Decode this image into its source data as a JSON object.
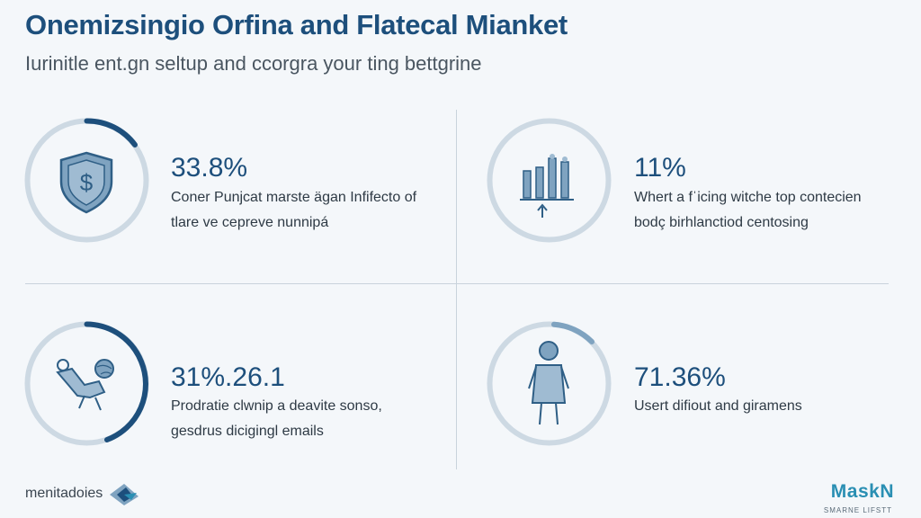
{
  "header": {
    "title": "Onemizsingio Orfina and Flatecal Mianket",
    "subtitle": "Iurinitle ent.gn seltup and ccorgra your ting bettgrine"
  },
  "stats": [
    {
      "value": "33.8%",
      "desc_line1": "Coner Punjcat marste ägan Infifecto of",
      "desc_line2": "tlare ve cepreve nunnipá",
      "icon": "shield-dollar-icon",
      "progress": 0.12
    },
    {
      "value": "11%",
      "desc_line1": "Whert a fˈicing witche top contecien",
      "desc_line2": "bodç birhlanctiod centosing",
      "icon": "bar-chart-growth-icon",
      "progress": 0.0
    },
    {
      "value": "31%.26.1",
      "desc_line1": "Prodratie clwnip a deavite sonso,",
      "desc_line2": "gesdrus dicigingl emails",
      "icon": "reclining-person-globe-icon",
      "progress": 0.38
    },
    {
      "value": "71.36%",
      "desc_line1": "Usert difiout and giramens",
      "desc_line2": "",
      "icon": "person-icon",
      "progress": 0.08
    }
  ],
  "footer": {
    "left_brand": "menitadoies",
    "right_brand": "MaskN",
    "right_tagline": "SMARNE LIFSTT"
  },
  "colors": {
    "accent": "#1d4f7c",
    "ring_track": "#cdd9e3",
    "icon_fill": "#7fa3c0",
    "brand_right": "#2a8fb3"
  }
}
